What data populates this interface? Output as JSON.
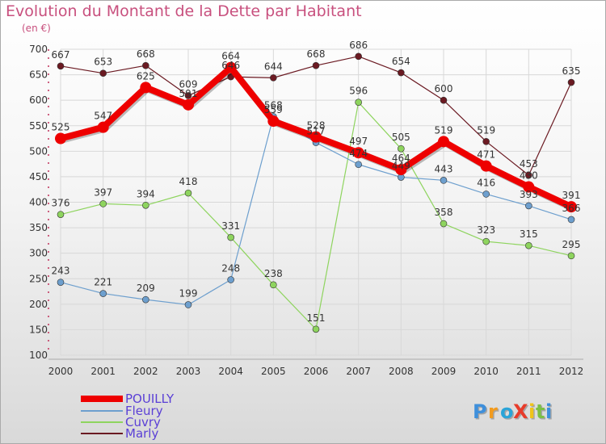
{
  "chart_data": {
    "type": "line",
    "title": "Evolution du Montant de la Dette par Habitant",
    "subtitle": "(en €)",
    "xlabel": "",
    "ylabel": "",
    "x": [
      "2000",
      "2001",
      "2002",
      "2003",
      "2004",
      "2005",
      "2006",
      "2007",
      "2008",
      "2009",
      "2010",
      "2011",
      "2012"
    ],
    "ylim": [
      100,
      700
    ],
    "yticks": [
      100,
      150,
      200,
      250,
      300,
      350,
      400,
      450,
      500,
      550,
      600,
      650,
      700
    ],
    "grid": true,
    "series": [
      {
        "name": "Marly",
        "color": "#6b1a22",
        "width": 1.2,
        "marker": 4,
        "values": [
          667,
          653,
          668,
          609,
          646,
          644,
          668,
          686,
          654,
          600,
          519,
          453,
          635
        ],
        "labels": [
          "667",
          "653",
          "668",
          "609",
          "646",
          "644",
          "668",
          "686",
          "654",
          "600",
          "519",
          "453",
          "635"
        ]
      },
      {
        "name": "Cuvry",
        "color": "#8ed45e",
        "width": 1.2,
        "marker": 4,
        "values": [
          376,
          397,
          394,
          418,
          331,
          238,
          151,
          596,
          505,
          358,
          323,
          315,
          295
        ],
        "labels": [
          "376",
          "397",
          "394",
          "418",
          "331",
          "238",
          "151",
          "596",
          "505",
          "358",
          "323",
          "315",
          "295"
        ]
      },
      {
        "name": "Fleury",
        "color": "#6d9fce",
        "width": 1.2,
        "marker": 4,
        "values": [
          243,
          221,
          209,
          199,
          248,
          568,
          517,
          474,
          449,
          443,
          416,
          393,
          366
        ],
        "labels": [
          "243",
          "221",
          "209",
          "199",
          "248",
          "568",
          "517",
          "474",
          "449",
          "443",
          "416",
          "393",
          "366"
        ]
      },
      {
        "name": "POUILLY",
        "color": "#ee0000",
        "width": 8,
        "marker": 7,
        "values": [
          525,
          547,
          625,
          591,
          664,
          559,
          528,
          497,
          464,
          519,
          471,
          430,
          391
        ],
        "labels": [
          "525",
          "547",
          "625",
          "591",
          "664",
          "559",
          "528",
          "497",
          "464",
          "519",
          "471",
          "430",
          "391"
        ]
      }
    ],
    "legend": [
      "POUILLY",
      "Fleury",
      "Cuvry",
      "Marly"
    ],
    "legend_position": "bottom-left"
  },
  "legend_colors": {
    "POUILLY": "#ee0000",
    "Fleury": "#6d9fce",
    "Cuvry": "#8ed45e",
    "Marly": "#6b1a22"
  },
  "legend_text_color": "#5a3fd6",
  "brand": {
    "text": "ProXiti",
    "colors": [
      "#3e8fdb",
      "#f29b1e",
      "#2aa4d8",
      "#e83c2b",
      "#f0c419",
      "#7bc043",
      "#3e8fdb"
    ]
  }
}
